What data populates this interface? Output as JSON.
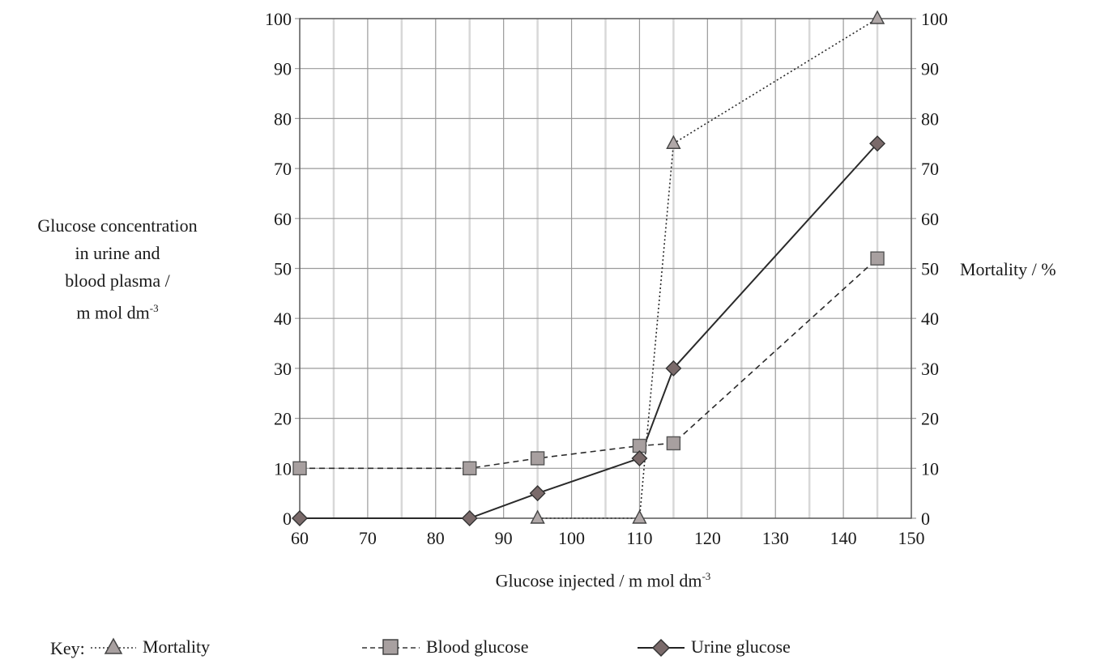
{
  "chart_data": {
    "type": "line",
    "x_tick_labels": [
      "60",
      "70",
      "80",
      "90",
      "100",
      "110",
      "120",
      "130",
      "140",
      "150"
    ],
    "y_tick_labels": [
      "0",
      "10",
      "20",
      "30",
      "40",
      "50",
      "60",
      "70",
      "80",
      "90",
      "100"
    ],
    "y2_tick_labels": [
      "0",
      "10",
      "20",
      "30",
      "40",
      "50",
      "60",
      "70",
      "80",
      "90",
      "100"
    ],
    "xlim": [
      60,
      150
    ],
    "ylim": [
      0,
      100
    ],
    "y2lim": [
      0,
      100
    ],
    "grid": true,
    "xlabel": "Glucose injected / m mol dm",
    "xlabel_sup": "-3",
    "ylabel_lines": [
      "Glucose concentration",
      "in urine and",
      "blood plasma /",
      "m mol dm"
    ],
    "ylabel_sup": "-3",
    "y2label": "Mortality / %",
    "key_label": "Key:",
    "series": [
      {
        "name": "Mortality",
        "axis": "right",
        "marker": "triangle",
        "line": "dotted",
        "color": "#999999",
        "points": [
          [
            95,
            0
          ],
          [
            110,
            0
          ],
          [
            115,
            75
          ],
          [
            145,
            100
          ]
        ]
      },
      {
        "name": "Blood glucose",
        "axis": "left",
        "marker": "square",
        "line": "dashed",
        "color": "#999999",
        "points": [
          [
            60,
            10
          ],
          [
            85,
            10
          ],
          [
            95,
            12
          ],
          [
            110,
            14.5
          ],
          [
            115,
            15
          ],
          [
            145,
            52
          ]
        ]
      },
      {
        "name": "Urine glucose",
        "axis": "left",
        "marker": "diamond",
        "line": "solid",
        "color": "#7a6a6a",
        "points": [
          [
            60,
            0
          ],
          [
            85,
            0
          ],
          [
            95,
            5
          ],
          [
            110,
            12
          ],
          [
            115,
            30
          ],
          [
            145,
            75
          ]
        ]
      }
    ]
  }
}
